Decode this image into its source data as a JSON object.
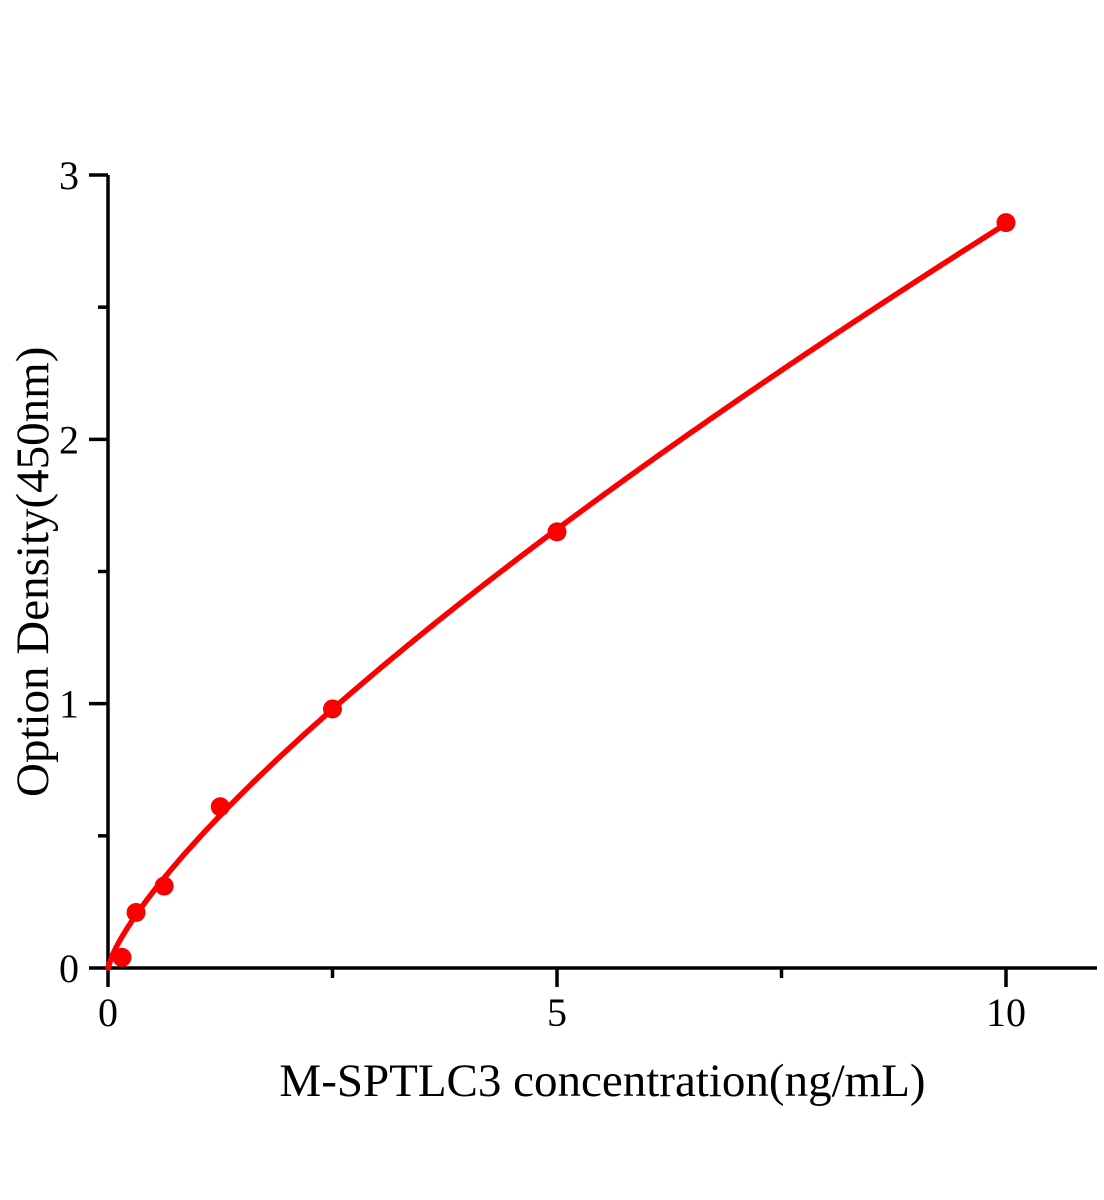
{
  "chart_data": {
    "type": "scatter",
    "title": "",
    "xlabel": "M-SPTLC3 concentration(ng/mL)",
    "ylabel": "Option Density(450nm)",
    "points": [
      {
        "x": 0.156,
        "y": 0.04
      },
      {
        "x": 0.3125,
        "y": 0.21
      },
      {
        "x": 0.625,
        "y": 0.31
      },
      {
        "x": 1.25,
        "y": 0.61
      },
      {
        "x": 2.5,
        "y": 0.98
      },
      {
        "x": 5,
        "y": 1.65
      },
      {
        "x": 10,
        "y": 2.82
      }
    ],
    "xlim": [
      0,
      11
    ],
    "ylim": [
      0,
      3
    ],
    "x_major_ticks": [
      {
        "value": 0,
        "label": "0"
      },
      {
        "value": 5,
        "label": "5"
      },
      {
        "value": 10,
        "label": "10"
      }
    ],
    "x_minor_ticks": [
      2.5,
      7.5
    ],
    "y_major_ticks": [
      {
        "value": 0,
        "label": "0"
      },
      {
        "value": 1,
        "label": "1"
      },
      {
        "value": 2,
        "label": "2"
      },
      {
        "value": 3,
        "label": "3"
      }
    ],
    "y_minor_ticks": [
      0.5,
      1.5,
      2.5
    ],
    "curve_fit": {
      "model": "power",
      "a": 0.487,
      "b": 0.762,
      "x_start": 0,
      "x_end": 10
    },
    "line_color": "#fa0000",
    "marker_color": "#fa0000",
    "axis_color": "#000000",
    "grid": false
  }
}
